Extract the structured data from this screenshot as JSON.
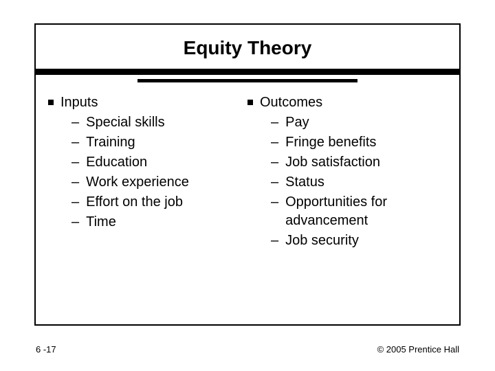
{
  "slide": {
    "title": "Equity Theory",
    "title_fontsize": 28,
    "title_weight": "bold",
    "rule_thick_height": 9,
    "rule_thin_height": 5,
    "rule_thin_width_pct": 52,
    "body_fontsize": 20,
    "border_color": "#000000",
    "background_color": "#ffffff"
  },
  "left": {
    "heading": "Inputs",
    "items": {
      "0": "Special skills",
      "1": "Training",
      "2": "Education",
      "3": "Work experience",
      "4": "Effort on the job",
      "5": "Time"
    }
  },
  "right": {
    "heading": "Outcomes",
    "items": {
      "0": "Pay",
      "1": "Fringe benefits",
      "2": "Job satisfaction",
      "3": "Status",
      "4": "Opportunities for advancement",
      "5": "Job security"
    }
  },
  "footer": {
    "page": "6 -17",
    "copyright": "© 2005 Prentice Hall",
    "fontsize": 13
  }
}
